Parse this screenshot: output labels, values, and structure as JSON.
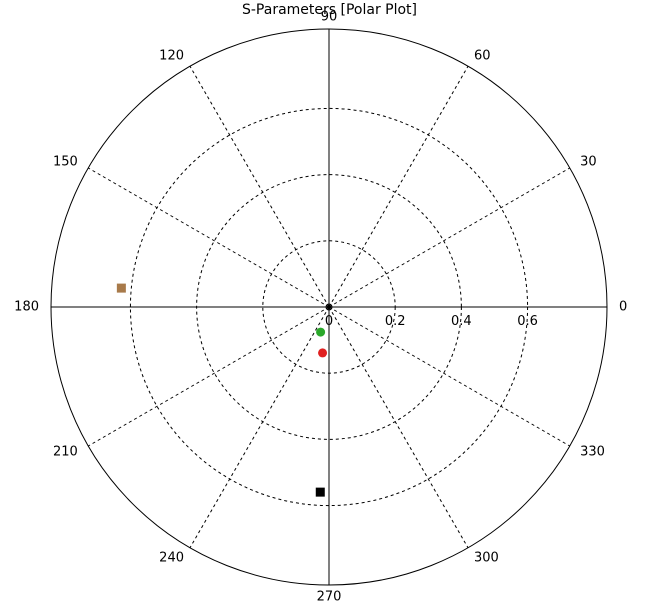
{
  "chart_data": {
    "type": "scatter",
    "title": "S-Parameters [Polar Plot]",
    "coordinate_system": "polar",
    "angle_unit": "degrees",
    "r_max": 0.84,
    "radial_ticks": [
      {
        "value": 0.2,
        "label": "0.2"
      },
      {
        "value": 0.4,
        "label": "0.4"
      },
      {
        "value": 0.6,
        "label": "0.6"
      }
    ],
    "radial_origin_label": "0",
    "angle_ticks": [
      {
        "value": 0,
        "label": "0"
      },
      {
        "value": 30,
        "label": "30"
      },
      {
        "value": 60,
        "label": "60"
      },
      {
        "value": 90,
        "label": "90"
      },
      {
        "value": 120,
        "label": "120"
      },
      {
        "value": 150,
        "label": "150"
      },
      {
        "value": 180,
        "label": "180"
      },
      {
        "value": 210,
        "label": "210"
      },
      {
        "value": 240,
        "label": "240"
      },
      {
        "value": 270,
        "label": "270"
      },
      {
        "value": 300,
        "label": "300"
      },
      {
        "value": 330,
        "label": "330"
      }
    ],
    "grid": true,
    "series": [
      {
        "marker": "square",
        "color": "#a87a4a",
        "points": [
          {
            "r": 0.63,
            "theta": 174.8
          }
        ]
      },
      {
        "marker": "circle",
        "color": "#2aa82a",
        "points": [
          {
            "r": 0.08,
            "theta": 251.5
          }
        ]
      },
      {
        "marker": "circle",
        "color": "#e02020",
        "points": [
          {
            "r": 0.14,
            "theta": 262.0
          }
        ]
      },
      {
        "marker": "square",
        "color": "#000000",
        "points": [
          {
            "r": 0.56,
            "theta": 267.3
          }
        ]
      }
    ]
  }
}
